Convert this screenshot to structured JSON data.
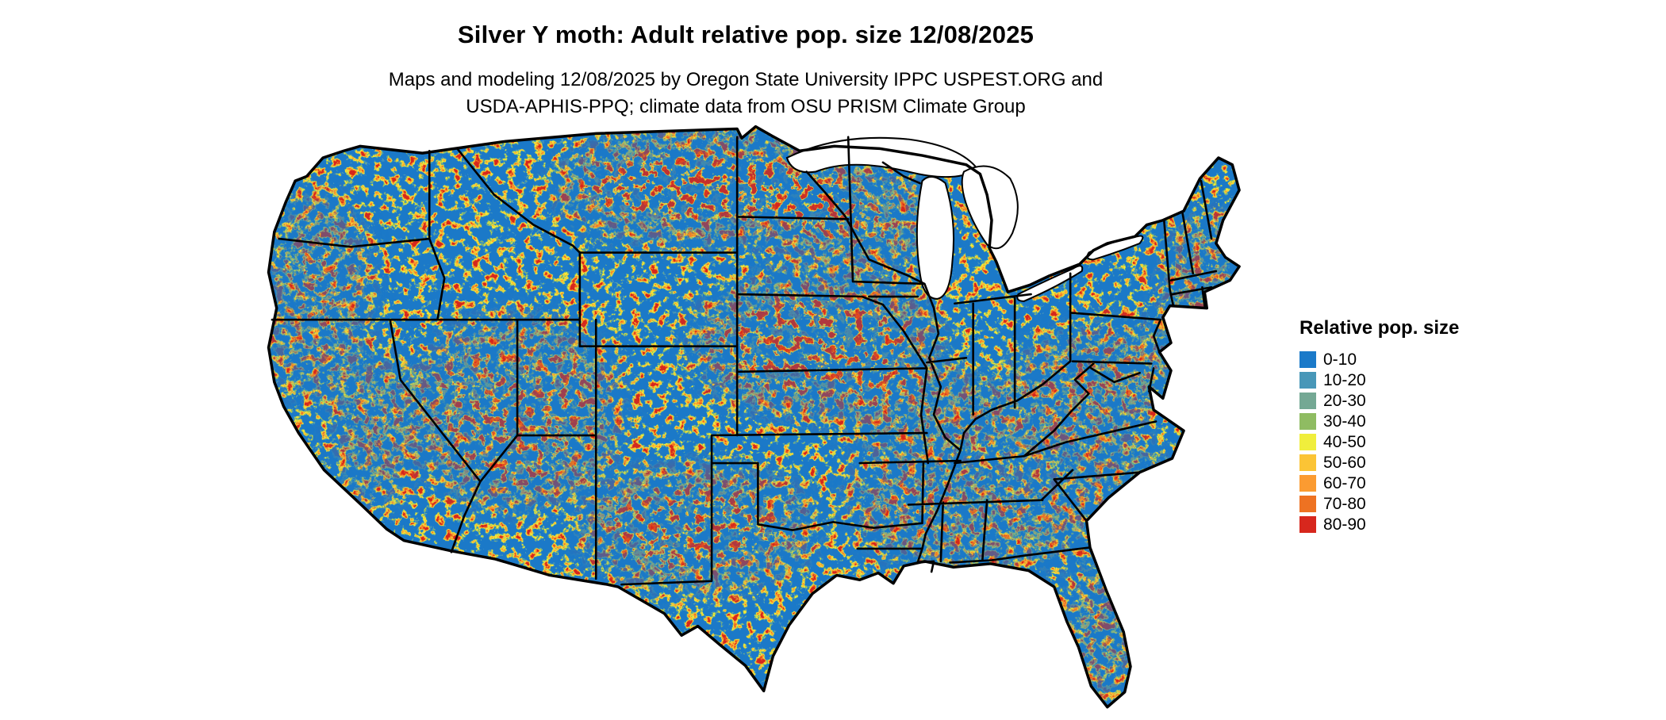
{
  "header": {
    "title": "Silver Y moth: Adult relative pop. size 12/08/2025",
    "subtitle_line1": "Maps and modeling 12/08/2025 by Oregon State University IPPC USPEST.ORG and",
    "subtitle_line2": "USDA-APHIS-PPQ; climate data from OSU PRISM Climate Group"
  },
  "legend": {
    "title": "Relative pop. size",
    "items": [
      {
        "label": "0-10",
        "color": "#1b7ac9"
      },
      {
        "label": "10-20",
        "color": "#4897b8"
      },
      {
        "label": "20-30",
        "color": "#74a894"
      },
      {
        "label": "30-40",
        "color": "#8fbc62"
      },
      {
        "label": "40-50",
        "color": "#f0ee3c"
      },
      {
        "label": "50-60",
        "color": "#fbc435"
      },
      {
        "label": "60-70",
        "color": "#fb9b31"
      },
      {
        "label": "70-80",
        "color": "#ee7222"
      },
      {
        "label": "80-90",
        "color": "#d7271d"
      }
    ]
  },
  "map": {
    "region": "Contiguous United States",
    "base_color": "#1b7ac9",
    "border_color": "#000000"
  }
}
